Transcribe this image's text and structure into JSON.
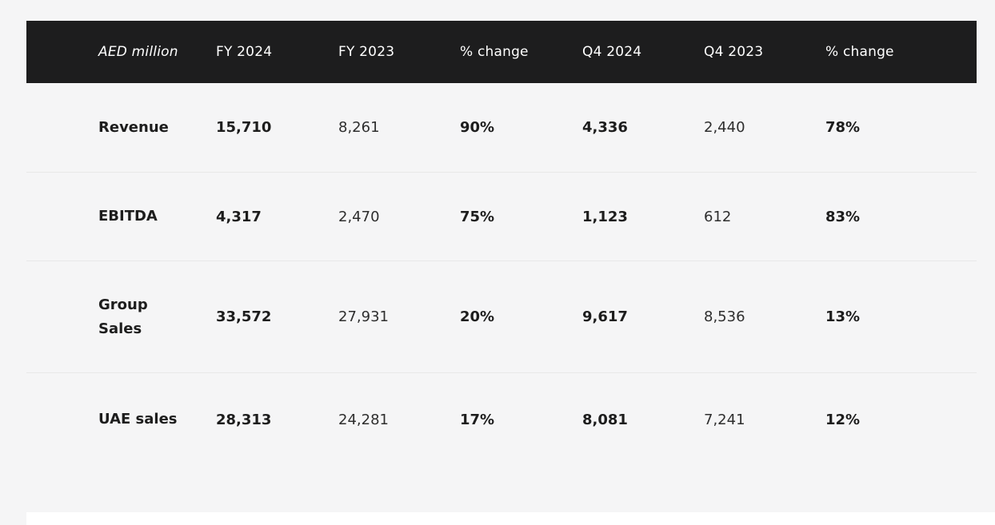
{
  "colors": {
    "page_background": "#f5f5f6",
    "header_background": "#1d1d1e",
    "header_text": "#ffffff",
    "bold_text": "#1d1d1d",
    "regular_text": "#2e2e2e",
    "row_separator": "#e8e8e8",
    "next_section_background": "#ffffff"
  },
  "table": {
    "unit_label": "AED million",
    "columns": [
      "FY 2024",
      "FY 2023",
      "% change",
      "Q4 2024",
      "Q4 2023",
      "% change"
    ],
    "rows": [
      {
        "label": "Revenue",
        "values": [
          "15,710",
          "8,261",
          "90%",
          "4,336",
          "2,440",
          "78%"
        ]
      },
      {
        "label": "EBITDA",
        "values": [
          "4,317",
          "2,470",
          "75%",
          "1,123",
          "612",
          "83%"
        ]
      },
      {
        "label": "Group Sales",
        "values": [
          "33,572",
          "27,931",
          "20%",
          "9,617",
          "8,536",
          "13%"
        ]
      },
      {
        "label": "UAE sales",
        "values": [
          "28,313",
          "24,281",
          "17%",
          "8,081",
          "7,241",
          "12%"
        ]
      }
    ]
  },
  "chart_data": {
    "type": "table",
    "title": "",
    "columns": [
      "AED million",
      "FY 2024",
      "FY 2023",
      "% change",
      "Q4 2024",
      "Q4 2023",
      "% change"
    ],
    "rows": [
      [
        "Revenue",
        "15,710",
        "8,261",
        "90%",
        "4,336",
        "2,440",
        "78%"
      ],
      [
        "EBITDA",
        "4,317",
        "2,470",
        "75%",
        "1,123",
        "612",
        "83%"
      ],
      [
        "Group Sales",
        "33,572",
        "27,931",
        "20%",
        "9,617",
        "8,536",
        "13%"
      ],
      [
        "UAE sales",
        "28,313",
        "24,281",
        "17%",
        "8,081",
        "7,241",
        "12%"
      ]
    ]
  }
}
